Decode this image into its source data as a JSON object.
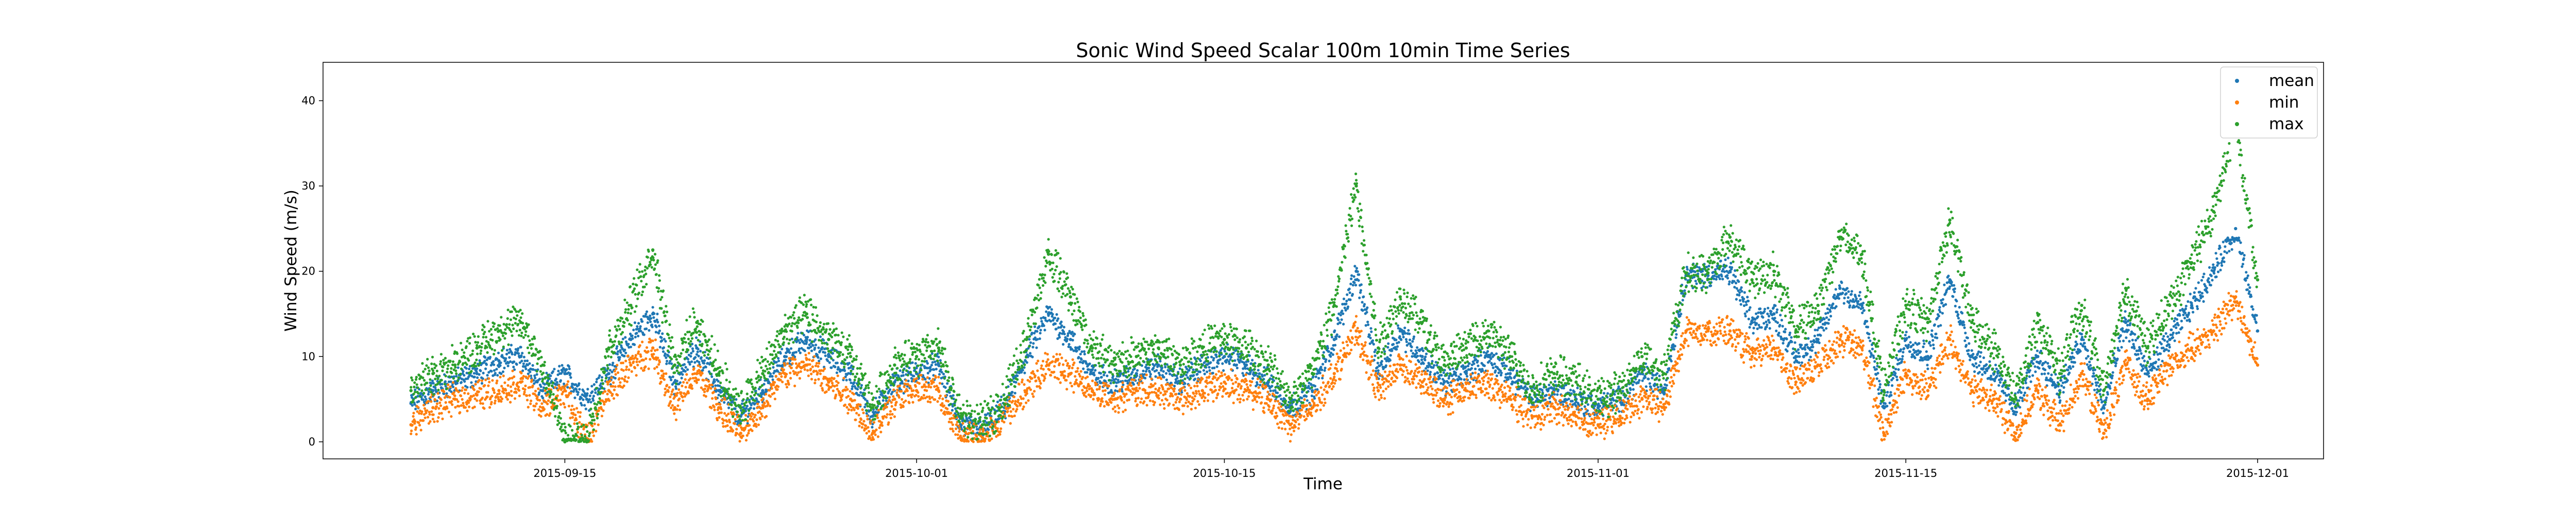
{
  "chart_data": {
    "type": "scatter",
    "title": "Sonic Wind Speed Scalar 100m 10min Time Series",
    "xlabel": "Time",
    "ylabel": "Wind Speed (m/s)",
    "x_range": [
      "2015-09-04",
      "2015-12-04"
    ],
    "ylim": [
      -2,
      44.5
    ],
    "x_ticks": [
      "2015-09-15",
      "2015-10-01",
      "2015-10-15",
      "2015-11-01",
      "2015-11-15",
      "2015-12-01"
    ],
    "y_ticks": [
      0,
      10,
      20,
      30,
      40
    ],
    "grid": false,
    "legend_position": "top-right",
    "colors": {
      "mean": "#1f77b4",
      "min": "#ff7f0e",
      "max": "#2ca02c"
    },
    "series": [
      {
        "name": "mean",
        "color": "#1f77b4",
        "x": [
          "2015-09-08",
          "2015-09-09",
          "2015-09-10",
          "2015-09-11",
          "2015-09-12",
          "2015-09-13",
          "2015-09-14",
          "2015-09-15",
          "2015-09-16",
          "2015-09-17",
          "2015-09-18",
          "2015-09-19",
          "2015-09-20",
          "2015-09-21",
          "2015-09-22",
          "2015-09-23",
          "2015-09-24",
          "2015-09-25",
          "2015-09-26",
          "2015-09-27",
          "2015-09-28",
          "2015-09-29",
          "2015-09-30",
          "2015-10-01",
          "2015-10-02",
          "2015-10-03",
          "2015-10-04",
          "2015-10-05",
          "2015-10-06",
          "2015-10-07",
          "2015-10-08",
          "2015-10-09",
          "2015-10-10",
          "2015-10-11",
          "2015-10-12",
          "2015-10-13",
          "2015-10-14",
          "2015-10-15",
          "2015-10-16",
          "2015-10-17",
          "2015-10-18",
          "2015-10-19",
          "2015-10-20",
          "2015-10-21",
          "2015-10-22",
          "2015-10-23",
          "2015-10-24",
          "2015-10-25",
          "2015-10-26",
          "2015-10-27",
          "2015-10-28",
          "2015-10-29",
          "2015-10-30",
          "2015-10-31",
          "2015-11-01",
          "2015-11-02",
          "2015-11-03",
          "2015-11-04",
          "2015-11-05",
          "2015-11-06",
          "2015-11-07",
          "2015-11-08",
          "2015-11-09",
          "2015-11-10",
          "2015-11-11",
          "2015-11-12",
          "2015-11-13",
          "2015-11-14",
          "2015-11-15",
          "2015-11-16",
          "2015-11-17",
          "2015-11-18",
          "2015-11-19",
          "2015-11-20",
          "2015-11-21",
          "2015-11-22",
          "2015-11-23",
          "2015-11-24",
          "2015-11-25",
          "2015-11-26",
          "2015-11-27",
          "2015-11-28",
          "2015-11-29",
          "2015-11-30",
          "2015-12-01"
        ],
        "y": [
          4.5,
          6,
          7,
          8,
          9.5,
          10,
          6,
          8,
          5,
          8,
          12,
          15,
          7,
          11,
          6,
          3,
          6,
          10,
          12,
          10,
          8,
          3,
          7,
          8,
          9,
          2,
          1.5,
          4,
          10,
          15,
          12,
          8,
          7,
          8,
          9,
          7,
          9,
          10,
          9,
          7,
          4,
          6,
          12,
          20,
          8,
          13,
          10,
          7,
          8,
          10,
          8,
          5,
          6,
          5,
          4,
          5,
          8,
          6,
          19.5,
          19.5,
          20,
          14,
          15,
          10,
          12,
          18,
          16,
          4,
          12,
          10,
          19,
          10,
          8,
          4,
          10,
          6,
          12,
          4,
          14,
          8,
          12,
          16,
          20,
          25,
          13
        ],
        "band_range": [
          0,
          24
        ]
      },
      {
        "name": "min",
        "color": "#ff7f0e",
        "x": [
          "2015-09-08",
          "2015-09-09",
          "2015-09-10",
          "2015-09-11",
          "2015-09-12",
          "2015-09-13",
          "2015-09-14",
          "2015-09-15",
          "2015-09-16",
          "2015-09-17",
          "2015-09-18",
          "2015-09-19",
          "2015-09-20",
          "2015-09-21",
          "2015-09-22",
          "2015-09-23",
          "2015-09-24",
          "2015-09-25",
          "2015-09-26",
          "2015-09-27",
          "2015-09-28",
          "2015-09-29",
          "2015-09-30",
          "2015-10-01",
          "2015-10-02",
          "2015-10-03",
          "2015-10-04",
          "2015-10-05",
          "2015-10-06",
          "2015-10-07",
          "2015-10-08",
          "2015-10-09",
          "2015-10-10",
          "2015-10-11",
          "2015-10-12",
          "2015-10-13",
          "2015-10-14",
          "2015-10-15",
          "2015-10-16",
          "2015-10-17",
          "2015-10-18",
          "2015-10-19",
          "2015-10-20",
          "2015-10-21",
          "2015-10-22",
          "2015-10-23",
          "2015-10-24",
          "2015-10-25",
          "2015-10-26",
          "2015-10-27",
          "2015-10-28",
          "2015-10-29",
          "2015-10-30",
          "2015-10-31",
          "2015-11-01",
          "2015-11-02",
          "2015-11-03",
          "2015-11-04",
          "2015-11-05",
          "2015-11-06",
          "2015-11-07",
          "2015-11-08",
          "2015-11-09",
          "2015-11-10",
          "2015-11-11",
          "2015-11-12",
          "2015-11-13",
          "2015-11-14",
          "2015-11-15",
          "2015-11-16",
          "2015-11-17",
          "2015-11-18",
          "2015-11-19",
          "2015-11-20",
          "2015-11-21",
          "2015-11-22",
          "2015-11-23",
          "2015-11-24",
          "2015-11-25",
          "2015-11-26",
          "2015-11-27",
          "2015-11-28",
          "2015-11-29",
          "2015-11-30",
          "2015-12-01"
        ],
        "y": [
          2,
          4,
          5,
          5.5,
          6,
          7,
          4,
          6,
          0,
          6,
          9,
          11,
          4,
          8,
          4,
          1,
          4,
          8,
          9,
          7,
          5,
          1,
          5,
          6,
          6,
          0.5,
          0.5,
          3,
          6,
          9,
          8,
          6,
          5,
          6,
          6,
          5,
          6,
          7,
          6,
          5,
          2,
          4,
          8,
          13,
          6,
          9,
          7,
          5,
          6,
          7,
          5,
          3,
          4,
          3,
          2,
          3,
          5,
          4,
          13,
          13,
          13,
          10,
          11,
          7,
          9,
          12,
          11,
          1,
          8,
          6,
          12,
          6,
          5,
          1,
          6,
          2,
          8,
          1,
          9,
          5,
          9,
          11,
          13,
          17,
          9
        ],
        "band_range": [
          0,
          19
        ]
      },
      {
        "name": "max",
        "color": "#2ca02c",
        "x": [
          "2015-09-08",
          "2015-09-09",
          "2015-09-10",
          "2015-09-11",
          "2015-09-12",
          "2015-09-13",
          "2015-09-14",
          "2015-09-15",
          "2015-09-16",
          "2015-09-17",
          "2015-09-18",
          "2015-09-19",
          "2015-09-20",
          "2015-09-21",
          "2015-09-22",
          "2015-09-23",
          "2015-09-24",
          "2015-09-25",
          "2015-09-26",
          "2015-09-27",
          "2015-09-28",
          "2015-09-29",
          "2015-09-30",
          "2015-10-01",
          "2015-10-02",
          "2015-10-03",
          "2015-10-04",
          "2015-10-05",
          "2015-10-06",
          "2015-10-07",
          "2015-10-08",
          "2015-10-09",
          "2015-10-10",
          "2015-10-11",
          "2015-10-12",
          "2015-10-13",
          "2015-10-14",
          "2015-10-15",
          "2015-10-16",
          "2015-10-17",
          "2015-10-18",
          "2015-10-19",
          "2015-10-20",
          "2015-10-21",
          "2015-10-22",
          "2015-10-23",
          "2015-10-24",
          "2015-10-25",
          "2015-10-26",
          "2015-10-27",
          "2015-10-28",
          "2015-10-29",
          "2015-10-30",
          "2015-10-31",
          "2015-11-01",
          "2015-11-02",
          "2015-11-03",
          "2015-11-04",
          "2015-11-05",
          "2015-11-06",
          "2015-11-07",
          "2015-11-08",
          "2015-11-09",
          "2015-11-10",
          "2015-11-11",
          "2015-11-12",
          "2015-11-13",
          "2015-11-14",
          "2015-11-15",
          "2015-11-16",
          "2015-11-17",
          "2015-11-18",
          "2015-11-19",
          "2015-11-20",
          "2015-11-21",
          "2015-11-22",
          "2015-11-23",
          "2015-11-24",
          "2015-11-25",
          "2015-11-26",
          "2015-11-27",
          "2015-11-28",
          "2015-11-29",
          "2015-11-30",
          "2015-12-01"
        ],
        "y": [
          6,
          8,
          9,
          11,
          13,
          14,
          9,
          0,
          0,
          11,
          16,
          22.5,
          9,
          14,
          8,
          4,
          8,
          13,
          15,
          12,
          10,
          4,
          9,
          10,
          11,
          3,
          2,
          5,
          12,
          22,
          17,
          11,
          9,
          10,
          11,
          9,
          11,
          12,
          11,
          9,
          5,
          8,
          16,
          30,
          11,
          17,
          14,
          9,
          11,
          13,
          10,
          6,
          8,
          7,
          5,
          6,
          10,
          8,
          19.8,
          19.8,
          24,
          19,
          20,
          13,
          16,
          24,
          22,
          6,
          16,
          14,
          26,
          14,
          11,
          5,
          14,
          8,
          16,
          6,
          18,
          11,
          16,
          21,
          27,
          38,
          19
        ],
        "band_range": [
          0,
          42.5
        ]
      }
    ]
  }
}
